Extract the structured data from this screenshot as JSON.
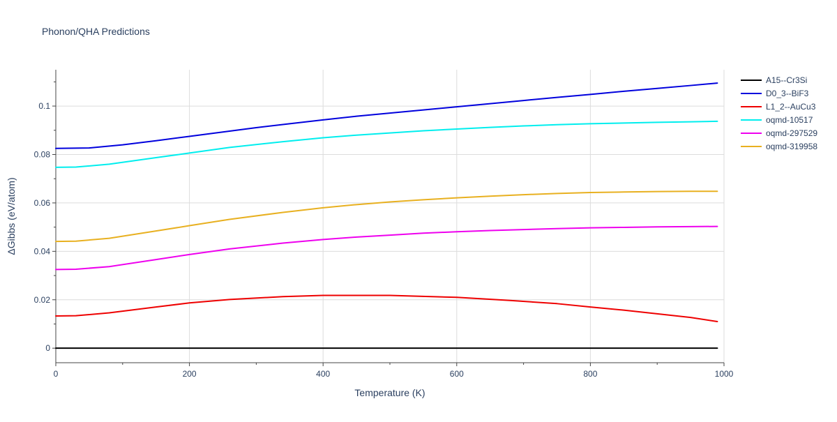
{
  "chart_data": {
    "type": "line",
    "title": "Phonon/QHA Predictions",
    "xlabel": "Temperature (K)",
    "ylabel": "ΔGibbs (eV/atom)",
    "xlim": [
      0,
      1000
    ],
    "ylim": [
      -0.006,
      0.115
    ],
    "xticks": [
      0,
      200,
      400,
      600,
      800,
      1000
    ],
    "yticks": [
      0,
      0.02,
      0.04,
      0.06,
      0.08,
      0.1
    ],
    "ytick_labels": [
      "0",
      "0.02",
      "0.04",
      "0.06",
      "0.08",
      "0.1"
    ],
    "xtick_labels": [
      "0",
      "200",
      "400",
      "600",
      "800",
      "1000"
    ],
    "grid": true,
    "legend_position": "top-right",
    "series": [
      {
        "name": "A15--Cr3Si",
        "color": "#000000",
        "x": [
          0,
          990
        ],
        "y": [
          0,
          0
        ]
      },
      {
        "name": "D0_3--BiF3",
        "color": "#0000dd",
        "x": [
          0,
          50,
          100,
          150,
          200,
          250,
          300,
          350,
          400,
          450,
          500,
          550,
          600,
          650,
          700,
          750,
          800,
          850,
          900,
          950,
          990
        ],
        "y": [
          0.0825,
          0.0827,
          0.084,
          0.0857,
          0.0875,
          0.0893,
          0.0911,
          0.0927,
          0.0943,
          0.0958,
          0.0971,
          0.0984,
          0.0997,
          0.101,
          0.1023,
          0.1036,
          0.1048,
          0.1061,
          0.1073,
          0.1085,
          0.1095
        ]
      },
      {
        "name": "L1_2--AuCu3",
        "color": "#ee0000",
        "x": [
          0,
          30,
          80,
          150,
          200,
          260,
          340,
          400,
          500,
          600,
          680,
          750,
          800,
          850,
          900,
          950,
          990
        ],
        "y": [
          0.0133,
          0.0134,
          0.0146,
          0.017,
          0.0187,
          0.0201,
          0.0213,
          0.0218,
          0.0218,
          0.021,
          0.0197,
          0.0184,
          0.017,
          0.0157,
          0.0142,
          0.0127,
          0.011
        ]
      },
      {
        "name": "oqmd-10517",
        "color": "#00eeee",
        "x": [
          0,
          30,
          80,
          150,
          200,
          260,
          340,
          400,
          450,
          500,
          550,
          600,
          650,
          700,
          750,
          800,
          850,
          900,
          950,
          990
        ],
        "y": [
          0.0747,
          0.0748,
          0.076,
          0.0787,
          0.0806,
          0.0829,
          0.0853,
          0.0869,
          0.088,
          0.0889,
          0.0898,
          0.0905,
          0.0912,
          0.0918,
          0.0923,
          0.0927,
          0.093,
          0.0933,
          0.0935,
          0.0937
        ]
      },
      {
        "name": "oqmd-297529",
        "color": "#ee00ee",
        "x": [
          0,
          30,
          80,
          150,
          200,
          260,
          340,
          400,
          450,
          500,
          550,
          600,
          650,
          700,
          750,
          800,
          850,
          900,
          950,
          990
        ],
        "y": [
          0.0325,
          0.0326,
          0.0337,
          0.0366,
          0.0387,
          0.041,
          0.0434,
          0.0449,
          0.0459,
          0.0467,
          0.0475,
          0.0481,
          0.0486,
          0.049,
          0.0494,
          0.0497,
          0.0499,
          0.0501,
          0.0502,
          0.0503
        ]
      },
      {
        "name": "oqmd-319958",
        "color": "#e8b020",
        "x": [
          0,
          30,
          80,
          150,
          200,
          260,
          340,
          400,
          450,
          500,
          550,
          600,
          650,
          700,
          750,
          800,
          850,
          900,
          950,
          990
        ],
        "y": [
          0.0441,
          0.0442,
          0.0454,
          0.0484,
          0.0506,
          0.0532,
          0.0561,
          0.058,
          0.0593,
          0.0604,
          0.0613,
          0.0621,
          0.0628,
          0.0634,
          0.0639,
          0.0643,
          0.0645,
          0.0647,
          0.0648,
          0.0648
        ]
      }
    ]
  }
}
